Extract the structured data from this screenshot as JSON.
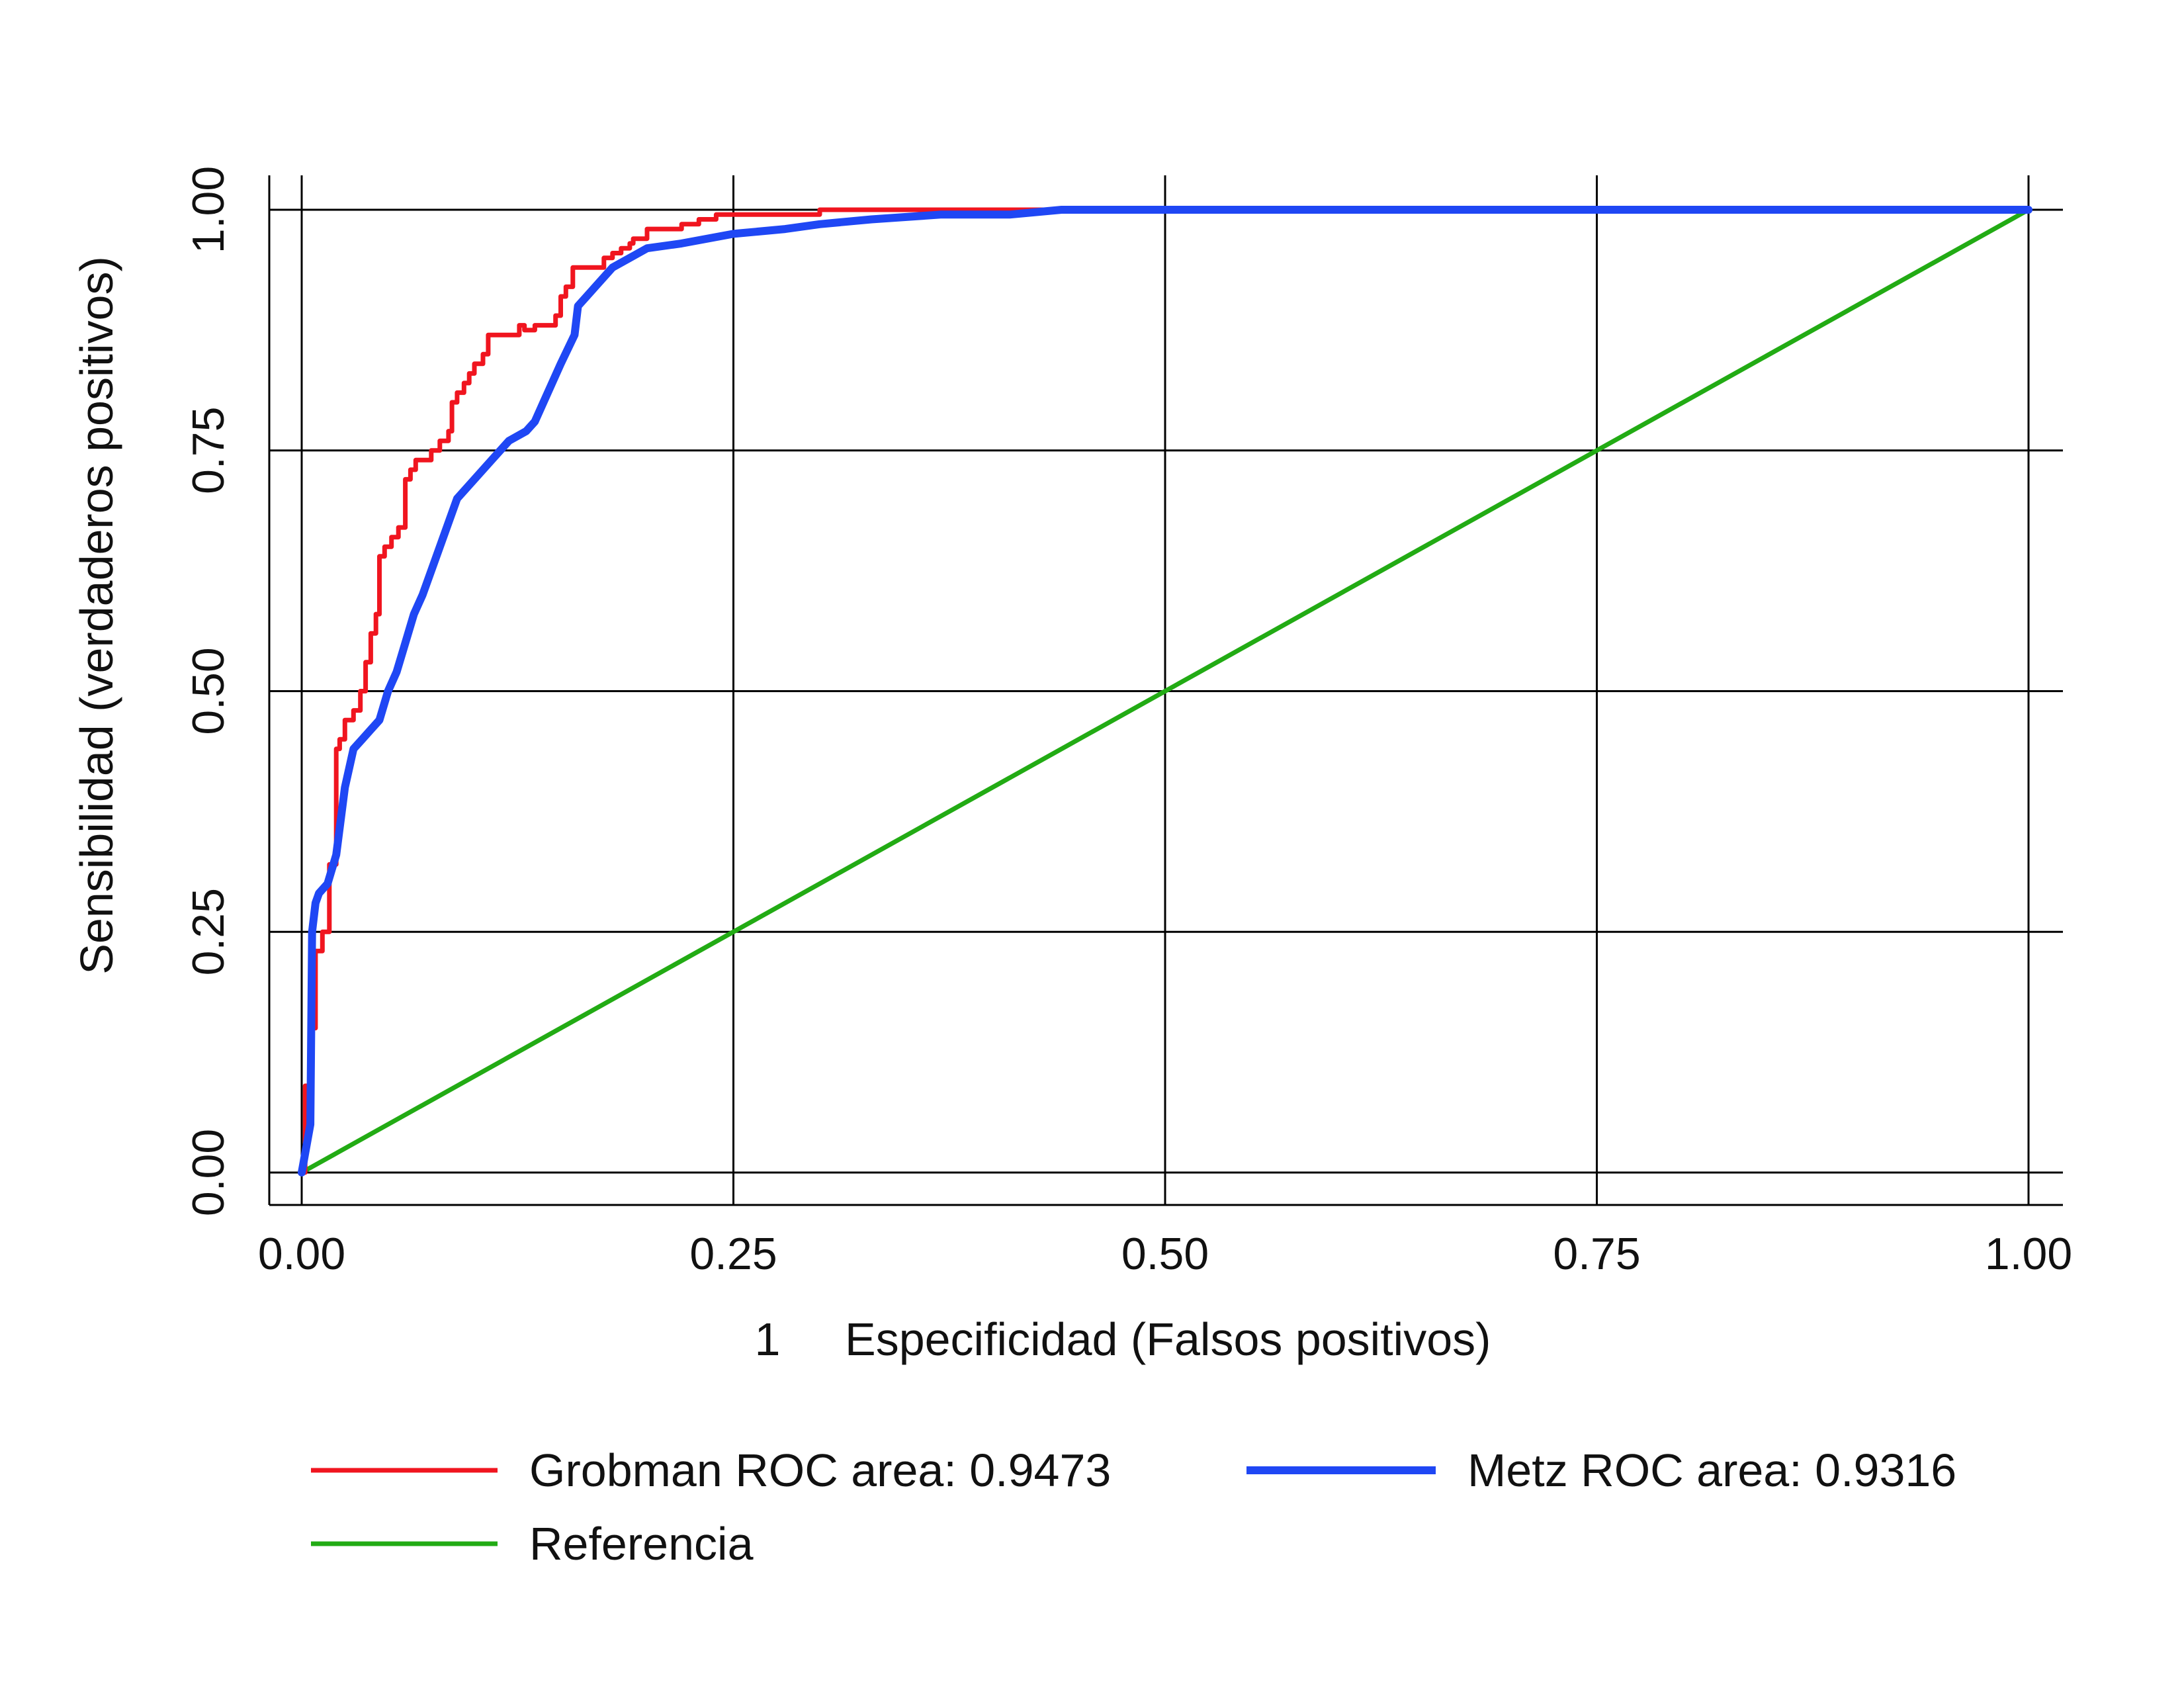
{
  "chart_data": {
    "type": "line",
    "title": "",
    "xlabel_prefix": "1",
    "xlabel": "Especificidad (Falsos positivos)",
    "ylabel": "Sensibilidad (verdaderos positivos)",
    "xlim": [
      0,
      1
    ],
    "ylim": [
      0,
      1
    ],
    "grid": true,
    "legend_position": "bottom",
    "x_ticks": [
      0,
      0.25,
      0.5,
      0.75,
      1
    ],
    "y_ticks": [
      0,
      0.25,
      0.5,
      0.75,
      1
    ],
    "x_tick_labels": [
      "0.00",
      "0.25",
      "0.50",
      "0.75",
      "1.00"
    ],
    "y_tick_labels": [
      "0.00",
      "0.25",
      "0.50",
      "0.75",
      "1.00"
    ],
    "series": [
      {
        "name": "Grobman ROC area: 0.9473",
        "color": "#f0151f",
        "step": true,
        "x": [
          0,
          0.002,
          0.002,
          0.005,
          0.005,
          0.008,
          0.008,
          0.012,
          0.012,
          0.016,
          0.016,
          0.02,
          0.02,
          0.022,
          0.022,
          0.025,
          0.025,
          0.03,
          0.03,
          0.034,
          0.034,
          0.037,
          0.037,
          0.04,
          0.04,
          0.043,
          0.043,
          0.045,
          0.045,
          0.048,
          0.048,
          0.052,
          0.052,
          0.056,
          0.056,
          0.06,
          0.06,
          0.063,
          0.063,
          0.066,
          0.066,
          0.075,
          0.075,
          0.08,
          0.08,
          0.085,
          0.085,
          0.087,
          0.087,
          0.09,
          0.09,
          0.094,
          0.094,
          0.097,
          0.097,
          0.1,
          0.1,
          0.105,
          0.105,
          0.108,
          0.108,
          0.126,
          0.126,
          0.129,
          0.129,
          0.135,
          0.135,
          0.14,
          0.14,
          0.147,
          0.147,
          0.15,
          0.15,
          0.153,
          0.153,
          0.157,
          0.157,
          0.175,
          0.175,
          0.18,
          0.18,
          0.185,
          0.185,
          0.19,
          0.19,
          0.192,
          0.192,
          0.2,
          0.2,
          0.22,
          0.22,
          0.23,
          0.23,
          0.24,
          0.24,
          0.3,
          0.3,
          0.31,
          0.31,
          1.0
        ],
        "y": [
          0,
          0,
          0.09,
          0.09,
          0.15,
          0.15,
          0.23,
          0.23,
          0.25,
          0.25,
          0.32,
          0.32,
          0.44,
          0.44,
          0.45,
          0.45,
          0.47,
          0.47,
          0.48,
          0.48,
          0.5,
          0.5,
          0.53,
          0.53,
          0.56,
          0.56,
          0.58,
          0.58,
          0.64,
          0.64,
          0.65,
          0.65,
          0.66,
          0.66,
          0.67,
          0.67,
          0.72,
          0.72,
          0.73,
          0.73,
          0.74,
          0.74,
          0.75,
          0.75,
          0.76,
          0.76,
          0.77,
          0.77,
          0.8,
          0.8,
          0.81,
          0.81,
          0.82,
          0.82,
          0.83,
          0.83,
          0.84,
          0.84,
          0.85,
          0.85,
          0.87,
          0.87,
          0.88,
          0.88,
          0.875,
          0.875,
          0.88,
          0.88,
          0.88,
          0.88,
          0.89,
          0.89,
          0.91,
          0.91,
          0.92,
          0.92,
          0.94,
          0.94,
          0.95,
          0.95,
          0.955,
          0.955,
          0.96,
          0.96,
          0.965,
          0.965,
          0.97,
          0.97,
          0.98,
          0.98,
          0.985,
          0.985,
          0.99,
          0.99,
          0.995,
          0.995,
          1.0,
          1.0,
          1.0,
          1.0
        ]
      },
      {
        "name": "Metz ROC area: 0.9316",
        "color": "#1f47f4",
        "step": false,
        "x": [
          0,
          0.005,
          0.006,
          0.008,
          0.01,
          0.015,
          0.02,
          0.025,
          0.03,
          0.035,
          0.04,
          0.045,
          0.05,
          0.055,
          0.06,
          0.065,
          0.07,
          0.08,
          0.09,
          0.1,
          0.11,
          0.12,
          0.13,
          0.135,
          0.14,
          0.15,
          0.158,
          0.16,
          0.17,
          0.18,
          0.19,
          0.2,
          0.22,
          0.25,
          0.28,
          0.3,
          0.33,
          0.37,
          0.41,
          0.44,
          0.5,
          1.0
        ],
        "y": [
          0,
          0.05,
          0.25,
          0.28,
          0.29,
          0.3,
          0.33,
          0.4,
          0.44,
          0.45,
          0.46,
          0.47,
          0.5,
          0.52,
          0.55,
          0.58,
          0.6,
          0.65,
          0.7,
          0.72,
          0.74,
          0.76,
          0.77,
          0.78,
          0.8,
          0.84,
          0.87,
          0.9,
          0.92,
          0.94,
          0.95,
          0.96,
          0.965,
          0.975,
          0.98,
          0.985,
          0.99,
          0.995,
          0.995,
          1.0,
          1.0,
          1.0
        ]
      },
      {
        "name": "Referencia",
        "color": "#22ab14",
        "step": false,
        "x": [
          0,
          1
        ],
        "y": [
          0,
          1
        ]
      }
    ]
  }
}
